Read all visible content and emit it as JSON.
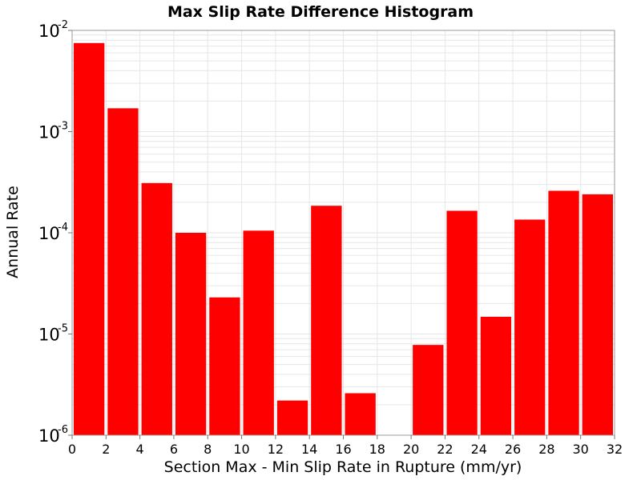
{
  "chart_data": {
    "type": "bar",
    "title": "Max Slip Rate Difference Histogram",
    "xlabel": "Section Max - Min Slip Rate in Rupture (mm/yr)",
    "ylabel": "Annual Rate",
    "xlim": [
      0,
      32
    ],
    "ylim": [
      1e-06,
      0.01
    ],
    "yscale": "log",
    "bin_width": 2,
    "x_ticks": [
      "0",
      "2",
      "4",
      "6",
      "8",
      "10",
      "12",
      "14",
      "16",
      "18",
      "20",
      "22",
      "24",
      "26",
      "28",
      "30",
      "32"
    ],
    "y_ticks": [
      {
        "base": "10",
        "exp": "-6",
        "value": 1e-06
      },
      {
        "base": "10",
        "exp": "-5",
        "value": 1e-05
      },
      {
        "base": "10",
        "exp": "-4",
        "value": 0.0001
      },
      {
        "base": "10",
        "exp": "-3",
        "value": 0.001
      },
      {
        "base": "10",
        "exp": "-2",
        "value": 0.01
      }
    ],
    "bars": [
      {
        "x": 1,
        "value": 0.0075
      },
      {
        "x": 3,
        "value": 0.0017
      },
      {
        "x": 5,
        "value": 0.00031
      },
      {
        "x": 7,
        "value": 0.0001
      },
      {
        "x": 9,
        "value": 2.3e-05
      },
      {
        "x": 11,
        "value": 0.000105
      },
      {
        "x": 13,
        "value": 2.2e-06
      },
      {
        "x": 15,
        "value": 0.000185
      },
      {
        "x": 17,
        "value": 2.6e-06
      },
      {
        "x": 19,
        "value": 0
      },
      {
        "x": 21,
        "value": 7.8e-06
      },
      {
        "x": 23,
        "value": 0.000165
      },
      {
        "x": 25,
        "value": 1.48e-05
      },
      {
        "x": 27,
        "value": 0.000135
      },
      {
        "x": 29,
        "value": 0.00026
      },
      {
        "x": 31,
        "value": 0.00024
      }
    ],
    "bar_color": "#ff0000",
    "grid": true,
    "grid_color": "#e6e6e6"
  }
}
